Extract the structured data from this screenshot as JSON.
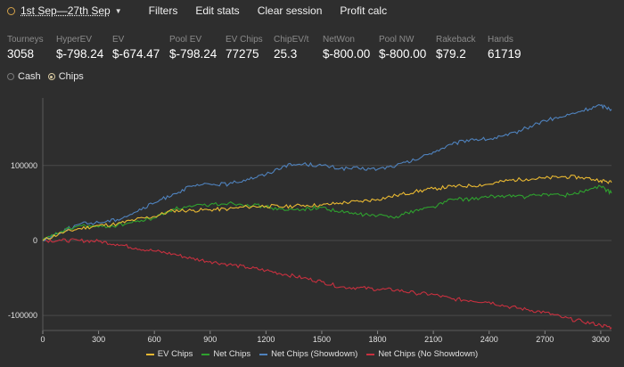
{
  "toolbar": {
    "date_range": "1st Sep—27th Sep",
    "filters": "Filters",
    "edit_stats": "Edit stats",
    "clear_session": "Clear session",
    "profit_calc": "Profit calc"
  },
  "stats": [
    {
      "label": "Tourneys",
      "value": "3058"
    },
    {
      "label": "HyperEV",
      "value": "$-798.24"
    },
    {
      "label": "EV",
      "value": "$-674.47"
    },
    {
      "label": "Pool EV",
      "value": "$-798.24"
    },
    {
      "label": "EV Chips",
      "value": "77275"
    },
    {
      "label": "ChipEV/t",
      "value": "25.3"
    },
    {
      "label": "NetWon",
      "value": "$-800.00"
    },
    {
      "label": "Pool NW",
      "value": "$-800.00"
    },
    {
      "label": "Rakeback",
      "value": "$79.2"
    },
    {
      "label": "Hands",
      "value": "61719"
    }
  ],
  "mode": {
    "cash": "Cash",
    "chips": "Chips",
    "selected": "chips"
  },
  "chart_data": {
    "type": "line",
    "x_ticks": [
      0,
      300,
      600,
      900,
      1200,
      1500,
      1800,
      2100,
      2400,
      2700,
      3000
    ],
    "y_ticks": [
      -100000,
      0,
      100000
    ],
    "xlim": [
      0,
      3058
    ],
    "ylim": [
      -120000,
      190000
    ],
    "grid": "horizontal",
    "legend_position": "bottom",
    "series": [
      {
        "name": "EV Chips",
        "color": "#e8b832",
        "x": [
          0,
          100,
          200,
          300,
          400,
          500,
          600,
          700,
          800,
          900,
          1000,
          1100,
          1200,
          1300,
          1400,
          1500,
          1600,
          1700,
          1800,
          1900,
          2000,
          2100,
          2200,
          2300,
          2400,
          2500,
          2600,
          2700,
          2800,
          2900,
          3000,
          3058
        ],
        "y": [
          0,
          10000,
          16000,
          20000,
          22000,
          28000,
          32000,
          40000,
          40000,
          41000,
          42000,
          45000,
          46000,
          45000,
          47000,
          47000,
          50000,
          52000,
          55000,
          60000,
          65000,
          69000,
          72000,
          73000,
          75000,
          80000,
          82000,
          83000,
          85000,
          84000,
          80000,
          77275
        ]
      },
      {
        "name": "Net Chips",
        "color": "#2ea12e",
        "x": [
          0,
          100,
          200,
          300,
          400,
          500,
          600,
          700,
          800,
          900,
          1000,
          1100,
          1200,
          1300,
          1400,
          1500,
          1600,
          1700,
          1800,
          1900,
          2000,
          2100,
          2200,
          2300,
          2400,
          2500,
          2600,
          2700,
          2800,
          2900,
          3000,
          3058
        ],
        "y": [
          0,
          12000,
          20000,
          18000,
          20000,
          25000,
          30000,
          42000,
          45000,
          48000,
          50000,
          48000,
          45000,
          40000,
          42000,
          44000,
          38000,
          35000,
          33000,
          32000,
          40000,
          45000,
          55000,
          55000,
          58000,
          60000,
          58000,
          62000,
          60000,
          65000,
          72000,
          63000
        ]
      },
      {
        "name": "Net Chips (Showdown)",
        "color": "#4f82bd",
        "x": [
          0,
          100,
          200,
          300,
          400,
          500,
          600,
          700,
          800,
          900,
          1000,
          1100,
          1200,
          1300,
          1400,
          1500,
          1600,
          1700,
          1800,
          1900,
          2000,
          2100,
          2200,
          2300,
          2400,
          2500,
          2600,
          2700,
          2800,
          2900,
          3000,
          3058
        ],
        "y": [
          0,
          12000,
          22000,
          24000,
          28000,
          38000,
          50000,
          62000,
          72000,
          75000,
          75000,
          82000,
          88000,
          100000,
          102000,
          100000,
          96000,
          96000,
          95000,
          100000,
          107000,
          118000,
          128000,
          135000,
          135000,
          140000,
          150000,
          160000,
          165000,
          173000,
          180000,
          175000
        ]
      },
      {
        "name": "Net Chips (No Showdown)",
        "color": "#c8303f",
        "x": [
          0,
          100,
          200,
          300,
          400,
          500,
          600,
          700,
          800,
          900,
          1000,
          1100,
          1200,
          1300,
          1400,
          1500,
          1600,
          1700,
          1800,
          1900,
          2000,
          2100,
          2200,
          2300,
          2400,
          2500,
          2600,
          2700,
          2800,
          2900,
          3000,
          3058
        ],
        "y": [
          0,
          0,
          0,
          -1000,
          -5000,
          -10000,
          -14000,
          -18000,
          -24000,
          -28000,
          -32000,
          -36000,
          -40000,
          -45000,
          -50000,
          -55000,
          -62000,
          -63000,
          -65000,
          -66000,
          -70000,
          -72000,
          -78000,
          -80000,
          -82000,
          -88000,
          -92000,
          -96000,
          -103000,
          -108000,
          -113000,
          -116000
        ]
      }
    ]
  }
}
